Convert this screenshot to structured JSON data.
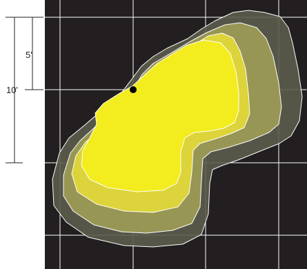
{
  "diagram": {
    "type": "lighting-pattern-isolux-plot",
    "scale_labels": {
      "five_ft": "5'",
      "ten_ft": "10'"
    },
    "contour_levels": [
      {
        "level": "outer",
        "color": "#5c5c4c"
      },
      {
        "level": "second",
        "color": "#9c9a55"
      },
      {
        "level": "third",
        "color": "#dcd43a"
      },
      {
        "level": "core",
        "color": "#f3ec1f"
      }
    ],
    "colors": {
      "background": "#231f20",
      "grid": "#ffffff",
      "contour_stroke": "#ffffff",
      "fixture_point": "#000000",
      "scale_ink": "#231f20"
    },
    "grid": {
      "visible": true
    }
  }
}
